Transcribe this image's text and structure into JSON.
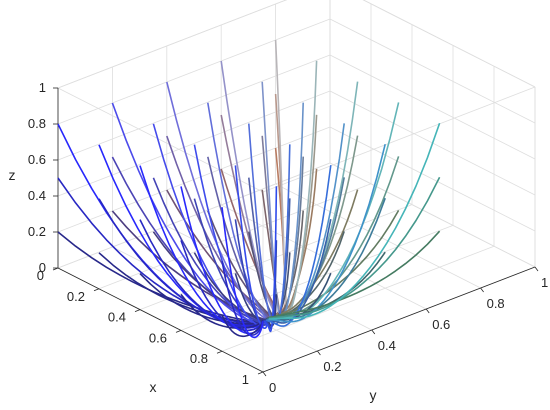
{
  "chart_data": {
    "type": "line3d",
    "title": "",
    "xlabel": "x",
    "ylabel": "y",
    "zlabel": "z",
    "xlim": [
      0,
      1
    ],
    "ylim": [
      0,
      1
    ],
    "zlim": [
      0,
      1
    ],
    "x_ticks": [
      "0",
      "0.2",
      "0.4",
      "0.6",
      "0.8",
      "1"
    ],
    "y_ticks": [
      "0",
      "0.2",
      "0.4",
      "0.6",
      "0.8",
      "1"
    ],
    "z_ticks": [
      "0",
      "0.2",
      "0.4",
      "0.6",
      "0.8",
      "1"
    ],
    "grid": true,
    "box": true,
    "equilibrium_point": {
      "x": 1,
      "y": 0,
      "z": 0.3
    },
    "trajectory_origins": {
      "x0": [
        0,
        0.2,
        0.4,
        0.6,
        0.8
      ],
      "y0": [
        0,
        0.2,
        0.4,
        0.6,
        0.8
      ],
      "z0": [
        0.2,
        0.5,
        0.8
      ]
    },
    "color_encoding": "rgb = (x0, y0, z0) initial condition",
    "series_count": 75
  }
}
